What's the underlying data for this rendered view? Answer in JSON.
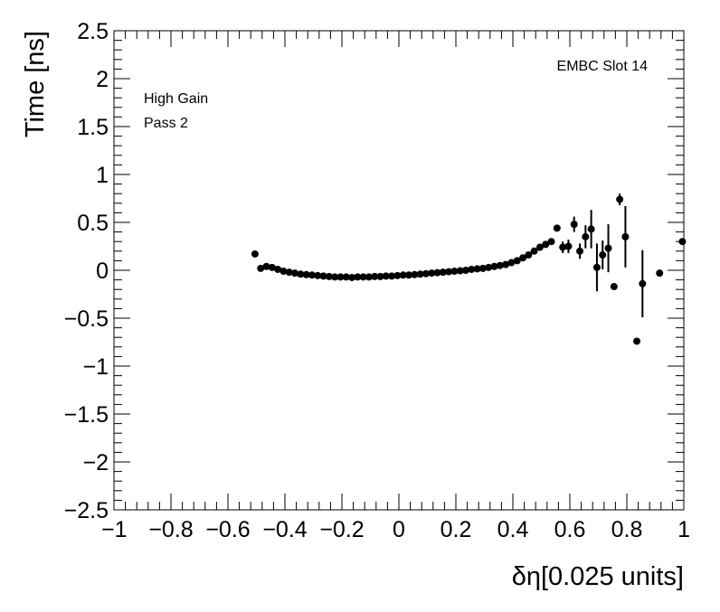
{
  "chart_data": {
    "type": "scatter",
    "xlabel": "δη[0.025 units]",
    "ylabel": "Time [ns]",
    "xlim": [
      -1,
      1
    ],
    "ylim": [
      -2.5,
      2.5
    ],
    "xticks": [
      -1,
      -0.8,
      -0.6,
      -0.4,
      -0.2,
      0,
      0.2,
      0.4,
      0.6,
      0.8,
      1
    ],
    "xtick_labels": [
      "−1",
      "−0.8",
      "−0.6",
      "−0.4",
      "−0.2",
      "0",
      "0.2",
      "0.4",
      "0.6",
      "0.8",
      "1"
    ],
    "yticks": [
      -2.5,
      -2,
      -1.5,
      -1,
      -0.5,
      0,
      0.5,
      1,
      1.5,
      2,
      2.5
    ],
    "ytick_labels": [
      "−2.5",
      "−2",
      "−1.5",
      "−1",
      "−0.5",
      "0",
      "0.5",
      "1",
      "1.5",
      "2",
      "2.5"
    ],
    "grid": false,
    "annotations": [
      "EMBC Slot 14",
      "High Gain",
      "Pass 2"
    ],
    "marker_color": "#000000",
    "points": [
      {
        "x": -0.505,
        "y": 0.17,
        "err": 0.0
      },
      {
        "x": -0.485,
        "y": 0.02,
        "err": 0.0
      },
      {
        "x": -0.465,
        "y": 0.04,
        "err": 0.0
      },
      {
        "x": -0.445,
        "y": 0.03,
        "err": 0.0
      },
      {
        "x": -0.425,
        "y": 0.01,
        "err": 0.0
      },
      {
        "x": -0.405,
        "y": -0.01,
        "err": 0.0
      },
      {
        "x": -0.385,
        "y": -0.02,
        "err": 0.0
      },
      {
        "x": -0.365,
        "y": -0.03,
        "err": 0.0
      },
      {
        "x": -0.345,
        "y": -0.04,
        "err": 0.0
      },
      {
        "x": -0.325,
        "y": -0.045,
        "err": 0.0
      },
      {
        "x": -0.305,
        "y": -0.05,
        "err": 0.0
      },
      {
        "x": -0.285,
        "y": -0.055,
        "err": 0.0
      },
      {
        "x": -0.265,
        "y": -0.06,
        "err": 0.0
      },
      {
        "x": -0.245,
        "y": -0.065,
        "err": 0.0
      },
      {
        "x": -0.225,
        "y": -0.07,
        "err": 0.0
      },
      {
        "x": -0.205,
        "y": -0.07,
        "err": 0.0
      },
      {
        "x": -0.185,
        "y": -0.07,
        "err": 0.0
      },
      {
        "x": -0.165,
        "y": -0.075,
        "err": 0.0
      },
      {
        "x": -0.145,
        "y": -0.07,
        "err": 0.0
      },
      {
        "x": -0.125,
        "y": -0.07,
        "err": 0.0
      },
      {
        "x": -0.105,
        "y": -0.07,
        "err": 0.0
      },
      {
        "x": -0.085,
        "y": -0.065,
        "err": 0.0
      },
      {
        "x": -0.065,
        "y": -0.065,
        "err": 0.0
      },
      {
        "x": -0.045,
        "y": -0.06,
        "err": 0.0
      },
      {
        "x": -0.025,
        "y": -0.06,
        "err": 0.0
      },
      {
        "x": -0.005,
        "y": -0.055,
        "err": 0.0
      },
      {
        "x": 0.015,
        "y": -0.05,
        "err": 0.0
      },
      {
        "x": 0.035,
        "y": -0.05,
        "err": 0.0
      },
      {
        "x": 0.055,
        "y": -0.045,
        "err": 0.0
      },
      {
        "x": 0.075,
        "y": -0.04,
        "err": 0.0
      },
      {
        "x": 0.095,
        "y": -0.035,
        "err": 0.0
      },
      {
        "x": 0.115,
        "y": -0.03,
        "err": 0.0
      },
      {
        "x": 0.135,
        "y": -0.025,
        "err": 0.0
      },
      {
        "x": 0.155,
        "y": -0.02,
        "err": 0.0
      },
      {
        "x": 0.175,
        "y": -0.015,
        "err": 0.0
      },
      {
        "x": 0.195,
        "y": -0.01,
        "err": 0.0
      },
      {
        "x": 0.215,
        "y": -0.005,
        "err": 0.0
      },
      {
        "x": 0.235,
        "y": 0.0,
        "err": 0.0
      },
      {
        "x": 0.255,
        "y": 0.01,
        "err": 0.0
      },
      {
        "x": 0.275,
        "y": 0.015,
        "err": 0.0
      },
      {
        "x": 0.295,
        "y": 0.02,
        "err": 0.0
      },
      {
        "x": 0.315,
        "y": 0.03,
        "err": 0.0
      },
      {
        "x": 0.335,
        "y": 0.04,
        "err": 0.0
      },
      {
        "x": 0.355,
        "y": 0.05,
        "err": 0.0
      },
      {
        "x": 0.375,
        "y": 0.06,
        "err": 0.0
      },
      {
        "x": 0.395,
        "y": 0.08,
        "err": 0.0
      },
      {
        "x": 0.415,
        "y": 0.1,
        "err": 0.0
      },
      {
        "x": 0.435,
        "y": 0.13,
        "err": 0.0
      },
      {
        "x": 0.455,
        "y": 0.16,
        "err": 0.0
      },
      {
        "x": 0.475,
        "y": 0.2,
        "err": 0.0
      },
      {
        "x": 0.495,
        "y": 0.24,
        "err": 0.0
      },
      {
        "x": 0.515,
        "y": 0.27,
        "err": 0.0
      },
      {
        "x": 0.535,
        "y": 0.3,
        "err": 0.0
      },
      {
        "x": 0.555,
        "y": 0.44,
        "err": 0.0
      },
      {
        "x": 0.575,
        "y": 0.24,
        "err": 0.06
      },
      {
        "x": 0.595,
        "y": 0.25,
        "err": 0.07
      },
      {
        "x": 0.615,
        "y": 0.48,
        "err": 0.08
      },
      {
        "x": 0.635,
        "y": 0.2,
        "err": 0.08
      },
      {
        "x": 0.655,
        "y": 0.35,
        "err": 0.12
      },
      {
        "x": 0.675,
        "y": 0.43,
        "err": 0.2
      },
      {
        "x": 0.695,
        "y": 0.03,
        "err": 0.25
      },
      {
        "x": 0.715,
        "y": 0.16,
        "err": 0.15
      },
      {
        "x": 0.735,
        "y": 0.23,
        "err": 0.25
      },
      {
        "x": 0.755,
        "y": -0.17,
        "err": 0.0
      },
      {
        "x": 0.775,
        "y": 0.74,
        "err": 0.06
      },
      {
        "x": 0.795,
        "y": 0.35,
        "err": 0.32
      },
      {
        "x": 0.835,
        "y": -0.74,
        "err": 0.0
      },
      {
        "x": 0.855,
        "y": -0.14,
        "err": 0.35
      },
      {
        "x": 0.915,
        "y": -0.03,
        "err": 0.0
      },
      {
        "x": 0.995,
        "y": 0.3,
        "err": 0.0
      }
    ]
  }
}
